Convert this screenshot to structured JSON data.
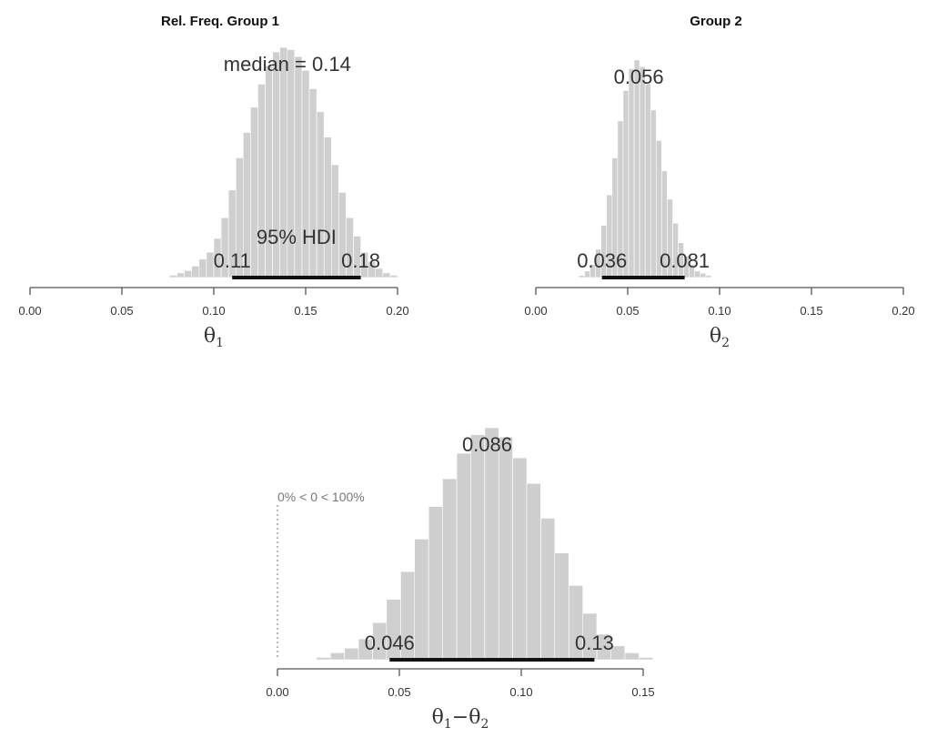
{
  "chart_data": [
    {
      "type": "histogram",
      "title": "Rel. Freq. Group 1",
      "xlabel": "θ",
      "xlabel_sub": "1",
      "xlim": [
        0.0,
        0.2
      ],
      "ticks": [
        0.0,
        0.05,
        0.1,
        0.15,
        0.2
      ],
      "tick_labels": [
        "0.00",
        "0.05",
        "0.10",
        "0.15",
        "0.20"
      ],
      "median": 0.14,
      "median_label": "median = 0.14",
      "hdi": [
        0.11,
        0.18
      ],
      "hdi_label": "95% HDI",
      "hdi_low_label": "0.11",
      "hdi_high_label": "0.18",
      "bin_width": 0.004,
      "bins": [
        [
          0.078,
          0.01
        ],
        [
          0.082,
          0.02
        ],
        [
          0.086,
          0.03
        ],
        [
          0.09,
          0.05
        ],
        [
          0.094,
          0.08
        ],
        [
          0.098,
          0.11
        ],
        [
          0.102,
          0.17
        ],
        [
          0.106,
          0.26
        ],
        [
          0.11,
          0.38
        ],
        [
          0.114,
          0.52
        ],
        [
          0.118,
          0.63
        ],
        [
          0.122,
          0.74
        ],
        [
          0.126,
          0.84
        ],
        [
          0.13,
          0.92
        ],
        [
          0.134,
          0.98
        ],
        [
          0.138,
          1.0
        ],
        [
          0.142,
          0.99
        ],
        [
          0.146,
          0.96
        ],
        [
          0.15,
          0.9
        ],
        [
          0.154,
          0.82
        ],
        [
          0.158,
          0.72
        ],
        [
          0.162,
          0.61
        ],
        [
          0.166,
          0.49
        ],
        [
          0.17,
          0.37
        ],
        [
          0.174,
          0.26
        ],
        [
          0.178,
          0.18
        ],
        [
          0.182,
          0.11
        ],
        [
          0.186,
          0.07
        ],
        [
          0.19,
          0.04
        ],
        [
          0.194,
          0.02
        ],
        [
          0.198,
          0.01
        ]
      ]
    },
    {
      "type": "histogram",
      "title": "Group 2",
      "xlabel": "θ",
      "xlabel_sub": "2",
      "xlim": [
        0.0,
        0.2
      ],
      "ticks": [
        0.0,
        0.05,
        0.1,
        0.15,
        0.2
      ],
      "tick_labels": [
        "0.00",
        "0.05",
        "0.10",
        "0.15",
        "0.20"
      ],
      "median": 0.056,
      "median_label": "0.056",
      "hdi": [
        0.036,
        0.081
      ],
      "hdi_low_label": "0.036",
      "hdi_high_label": "0.081",
      "bin_width": 0.003,
      "bins": [
        [
          0.025,
          0.01
        ],
        [
          0.028,
          0.03
        ],
        [
          0.031,
          0.06
        ],
        [
          0.034,
          0.13
        ],
        [
          0.037,
          0.24
        ],
        [
          0.04,
          0.38
        ],
        [
          0.043,
          0.55
        ],
        [
          0.046,
          0.72
        ],
        [
          0.049,
          0.86
        ],
        [
          0.052,
          0.96
        ],
        [
          0.055,
          1.0
        ],
        [
          0.058,
          0.97
        ],
        [
          0.061,
          0.89
        ],
        [
          0.064,
          0.77
        ],
        [
          0.067,
          0.63
        ],
        [
          0.07,
          0.49
        ],
        [
          0.073,
          0.36
        ],
        [
          0.076,
          0.25
        ],
        [
          0.079,
          0.16
        ],
        [
          0.082,
          0.1
        ],
        [
          0.085,
          0.06
        ],
        [
          0.088,
          0.03
        ],
        [
          0.091,
          0.02
        ],
        [
          0.094,
          0.01
        ]
      ]
    },
    {
      "type": "histogram",
      "title": "",
      "xlabel": "θ",
      "xlabel_sub": "1",
      "xlabel_op": "−",
      "xlabel2": "θ",
      "xlabel2_sub": "2",
      "xlim": [
        0.0,
        0.15
      ],
      "ticks": [
        0.0,
        0.05,
        0.1,
        0.15
      ],
      "tick_labels": [
        "0.00",
        "0.05",
        "0.10",
        "0.15"
      ],
      "median": 0.086,
      "median_label": "0.086",
      "hdi": [
        0.046,
        0.13
      ],
      "hdi_low_label": "0.046",
      "hdi_high_label": "0.13",
      "comparison_value": 0,
      "comparison_label": "0% < 0 < 100%",
      "bin_width": 0.00575,
      "bins": [
        [
          0.0189,
          0.01
        ],
        [
          0.0246,
          0.03
        ],
        [
          0.0304,
          0.05
        ],
        [
          0.0361,
          0.09
        ],
        [
          0.0419,
          0.16
        ],
        [
          0.0476,
          0.26
        ],
        [
          0.0534,
          0.38
        ],
        [
          0.0591,
          0.52
        ],
        [
          0.0649,
          0.66
        ],
        [
          0.0706,
          0.78
        ],
        [
          0.0764,
          0.89
        ],
        [
          0.0821,
          0.97
        ],
        [
          0.0879,
          1.0
        ],
        [
          0.0936,
          0.96
        ],
        [
          0.0994,
          0.87
        ],
        [
          0.1051,
          0.76
        ],
        [
          0.1109,
          0.61
        ],
        [
          0.1166,
          0.46
        ],
        [
          0.1224,
          0.32
        ],
        [
          0.1281,
          0.2
        ],
        [
          0.1339,
          0.11
        ],
        [
          0.1396,
          0.06
        ],
        [
          0.1454,
          0.03
        ],
        [
          0.1511,
          0.01
        ]
      ]
    }
  ]
}
